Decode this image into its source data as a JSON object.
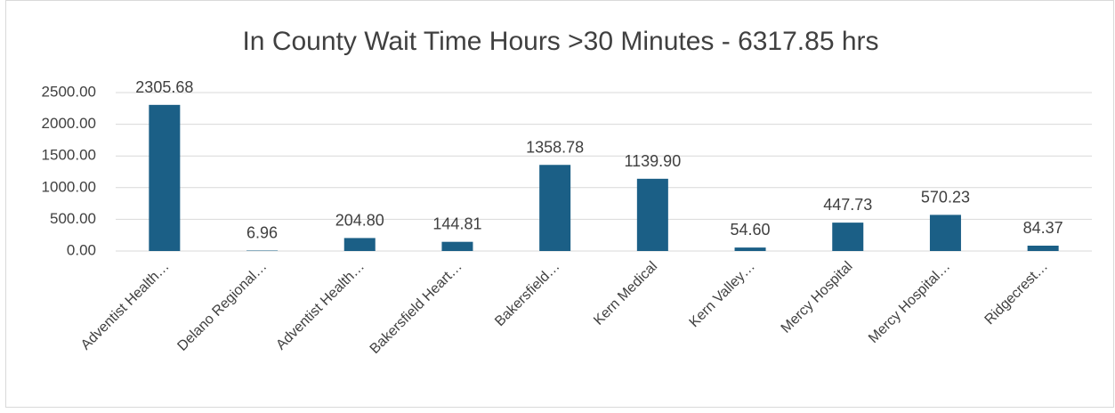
{
  "chart_data": {
    "type": "bar",
    "title": "In County Wait Time Hours >30 Minutes - 6317.85 hrs",
    "categories": [
      "Adventist Health…",
      "Delano Regional…",
      "Adventist Health…",
      "Bakersfield Heart…",
      "Bakersfield…",
      "Kern Medical",
      "Kern Valley…",
      "Mercy Hospital",
      "Mercy Hospital…",
      "Ridgecrest…"
    ],
    "values": [
      2305.68,
      6.96,
      204.8,
      144.81,
      1358.78,
      1139.9,
      54.6,
      447.73,
      570.23,
      84.37
    ],
    "value_labels": [
      "2305.68",
      "6.96",
      "204.80",
      "144.81",
      "1358.78",
      "1139.90",
      "54.60",
      "447.73",
      "570.23",
      "84.37"
    ],
    "color": "#1b5f86",
    "ylim": [
      0,
      2500
    ],
    "yticks": [
      {
        "value": 0,
        "label": "0.00"
      },
      {
        "value": 500,
        "label": "500.00"
      },
      {
        "value": 1000,
        "label": "1000.00"
      },
      {
        "value": 1500,
        "label": "1500.00"
      },
      {
        "value": 2000,
        "label": "2000.00"
      },
      {
        "value": 2500,
        "label": "2500.00"
      }
    ],
    "grid": true
  }
}
